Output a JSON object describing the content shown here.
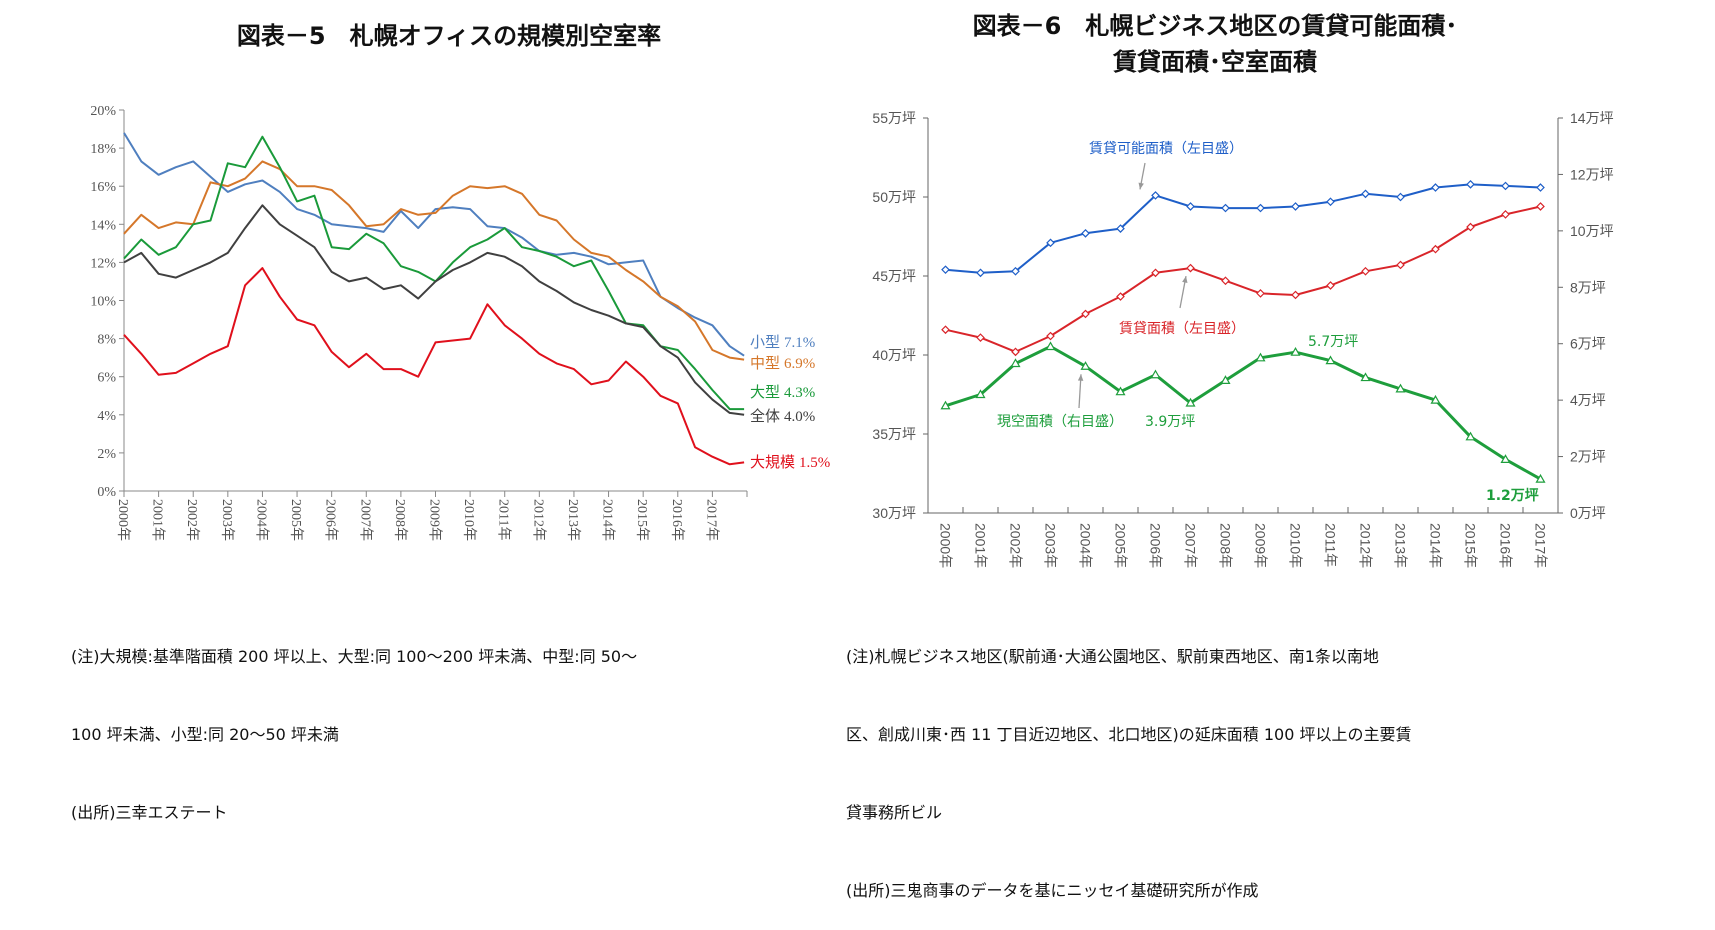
{
  "chart_data": [
    {
      "type": "line",
      "title": "図表－5　札幌オフィスの規模別空室率",
      "xlabel": "",
      "ylabel": "",
      "ylim": [
        0,
        20
      ],
      "yticks": [
        "0%",
        "2%",
        "4%",
        "6%",
        "8%",
        "10%",
        "12%",
        "14%",
        "16%",
        "18%",
        "20%"
      ],
      "xticks": [
        "2000年",
        "2001年",
        "2002年",
        "2003年",
        "2004年",
        "2005年",
        "2006年",
        "2007年",
        "2008年",
        "2009年",
        "2010年",
        "2011年",
        "2012年",
        "2013年",
        "2014年",
        "2015年",
        "2016年",
        "2017年"
      ],
      "grid": false,
      "x": [
        "2000-01",
        "2000-07",
        "2001-01",
        "2001-07",
        "2002-01",
        "2002-07",
        "2003-01",
        "2003-07",
        "2004-01",
        "2004-07",
        "2005-01",
        "2005-07",
        "2006-01",
        "2006-07",
        "2007-01",
        "2007-07",
        "2008-01",
        "2008-07",
        "2009-01",
        "2009-07",
        "2010-01",
        "2010-07",
        "2011-01",
        "2011-07",
        "2012-01",
        "2012-07",
        "2013-01",
        "2013-07",
        "2014-01",
        "2014-07",
        "2015-01",
        "2015-07",
        "2016-01",
        "2016-07",
        "2017-01",
        "2017-07",
        "2017-12"
      ],
      "series": [
        {
          "name": "小型",
          "end_label": "7.1%",
          "color": "#4f7fbf",
          "values": [
            18.8,
            17.3,
            16.6,
            17.0,
            17.3,
            16.5,
            15.7,
            16.1,
            16.3,
            15.7,
            14.8,
            14.5,
            14.0,
            13.9,
            13.8,
            13.6,
            14.7,
            13.8,
            14.8,
            14.9,
            14.8,
            13.9,
            13.8,
            13.3,
            12.6,
            12.4,
            12.5,
            12.3,
            11.9,
            12.0,
            12.1,
            10.2,
            9.6,
            9.1,
            8.7,
            7.6,
            7.1
          ]
        },
        {
          "name": "中型",
          "end_label": "6.9%",
          "color": "#d5772a",
          "values": [
            13.5,
            14.5,
            13.8,
            14.1,
            14.0,
            16.2,
            16.0,
            16.4,
            17.3,
            16.9,
            16.0,
            16.0,
            15.8,
            15.0,
            13.9,
            14.0,
            14.8,
            14.5,
            14.6,
            15.5,
            16.0,
            15.9,
            16.0,
            15.6,
            14.5,
            14.2,
            13.2,
            12.5,
            12.3,
            11.6,
            11.0,
            10.2,
            9.7,
            8.9,
            7.4,
            7.0,
            6.9
          ]
        },
        {
          "name": "大型",
          "end_label": "4.3%",
          "color": "#1a9a3a",
          "values": [
            12.2,
            13.2,
            12.4,
            12.8,
            14.0,
            14.2,
            17.2,
            17.0,
            18.6,
            17.0,
            15.2,
            15.5,
            12.8,
            12.7,
            13.5,
            13.0,
            11.8,
            11.5,
            11.0,
            12.0,
            12.8,
            13.2,
            13.8,
            12.8,
            12.6,
            12.3,
            11.8,
            12.1,
            10.5,
            8.8,
            8.7,
            7.6,
            7.4,
            6.4,
            5.3,
            4.3,
            4.3
          ]
        },
        {
          "name": "全体",
          "end_label": "4.0%",
          "color": "#404040",
          "values": [
            12.0,
            12.5,
            11.4,
            11.2,
            11.6,
            12.0,
            12.5,
            13.8,
            15.0,
            14.0,
            13.4,
            12.8,
            11.5,
            11.0,
            11.2,
            10.6,
            10.8,
            10.1,
            11.0,
            11.6,
            12.0,
            12.5,
            12.3,
            11.8,
            11.0,
            10.5,
            9.9,
            9.5,
            9.2,
            8.8,
            8.6,
            7.6,
            7.0,
            5.7,
            4.8,
            4.1,
            4.0
          ]
        },
        {
          "name": "大規模",
          "end_label": "1.5%",
          "color": "#e0101c",
          "values": [
            8.2,
            7.2,
            6.1,
            6.2,
            6.7,
            7.2,
            7.6,
            10.8,
            11.7,
            10.2,
            9.0,
            8.7,
            7.3,
            6.5,
            7.2,
            6.4,
            6.4,
            6.0,
            7.8,
            7.9,
            8.0,
            9.8,
            8.7,
            8.0,
            7.2,
            6.7,
            6.4,
            5.6,
            5.8,
            6.8,
            6.0,
            5.0,
            4.6,
            2.3,
            1.8,
            1.4,
            1.5
          ]
        }
      ]
    },
    {
      "type": "line",
      "title": [
        "図表－6　札幌ビジネス地区の賃貸可能面積･",
        "賃貸面積･空室面積"
      ],
      "xlabel": "",
      "ylabel": "",
      "categories": [
        "2000年",
        "2001年",
        "2002年",
        "2003年",
        "2004年",
        "2005年",
        "2006年",
        "2007年",
        "2008年",
        "2009年",
        "2010年",
        "2011年",
        "2012年",
        "2013年",
        "2014年",
        "2015年",
        "2016年",
        "2017年"
      ],
      "ylim_left": [
        30,
        55
      ],
      "ylim_right": [
        0,
        14
      ],
      "yticks_left": [
        "30万坪",
        "35万坪",
        "40万坪",
        "45万坪",
        "50万坪",
        "55万坪"
      ],
      "yticks_right": [
        "0万坪",
        "2万坪",
        "4万坪",
        "6万坪",
        "8万坪",
        "10万坪",
        "12万坪",
        "14万坪"
      ],
      "grid": false,
      "series": [
        {
          "name": "賃貸可能面積（左目盛）",
          "axis": "left",
          "color": "#1f5fc8",
          "marker": "diamond",
          "values": [
            45.4,
            45.2,
            45.3,
            47.1,
            47.7,
            48.0,
            50.1,
            49.4,
            49.3,
            49.3,
            49.4,
            49.7,
            50.2,
            50.0,
            50.6,
            50.8,
            50.7,
            50.6
          ]
        },
        {
          "name": "賃貸面積（左目盛）",
          "axis": "left",
          "color": "#d9252a",
          "marker": "diamond",
          "values": [
            41.6,
            41.1,
            40.2,
            41.2,
            42.6,
            43.7,
            45.2,
            45.5,
            44.7,
            43.9,
            43.8,
            44.4,
            45.3,
            45.7,
            46.7,
            48.1,
            48.9,
            49.4
          ]
        },
        {
          "name": "現空面積（右目盛）",
          "axis": "right",
          "color": "#1e9e3c",
          "marker": "triangle",
          "values": [
            3.8,
            4.2,
            5.3,
            5.9,
            5.2,
            4.3,
            4.9,
            3.9,
            4.7,
            5.5,
            5.7,
            5.4,
            4.8,
            4.4,
            4.0,
            2.7,
            1.9,
            1.2
          ]
        }
      ],
      "annotations": {
        "peak": "5.7万坪",
        "low": "3.9万坪",
        "last": "1.2万坪"
      }
    }
  ],
  "notes": {
    "left": [
      "(注)大規模:基準階面積 200 坪以上、大型:同 100～200 坪未満、中型:同 50～",
      "100 坪未満、小型:同 20～50 坪未満",
      "(出所)三幸エステート"
    ],
    "right": [
      "(注)札幌ビジネス地区(駅前通･大通公園地区、駅前東西地区、南1条以南地",
      "区、創成川東･西 11 丁目近辺地区、北口地区)の延床面積 100 坪以上の主要賃",
      "貸事務所ビル",
      "(出所)三鬼商事のデータを基にニッセイ基礎研究所が作成"
    ]
  }
}
